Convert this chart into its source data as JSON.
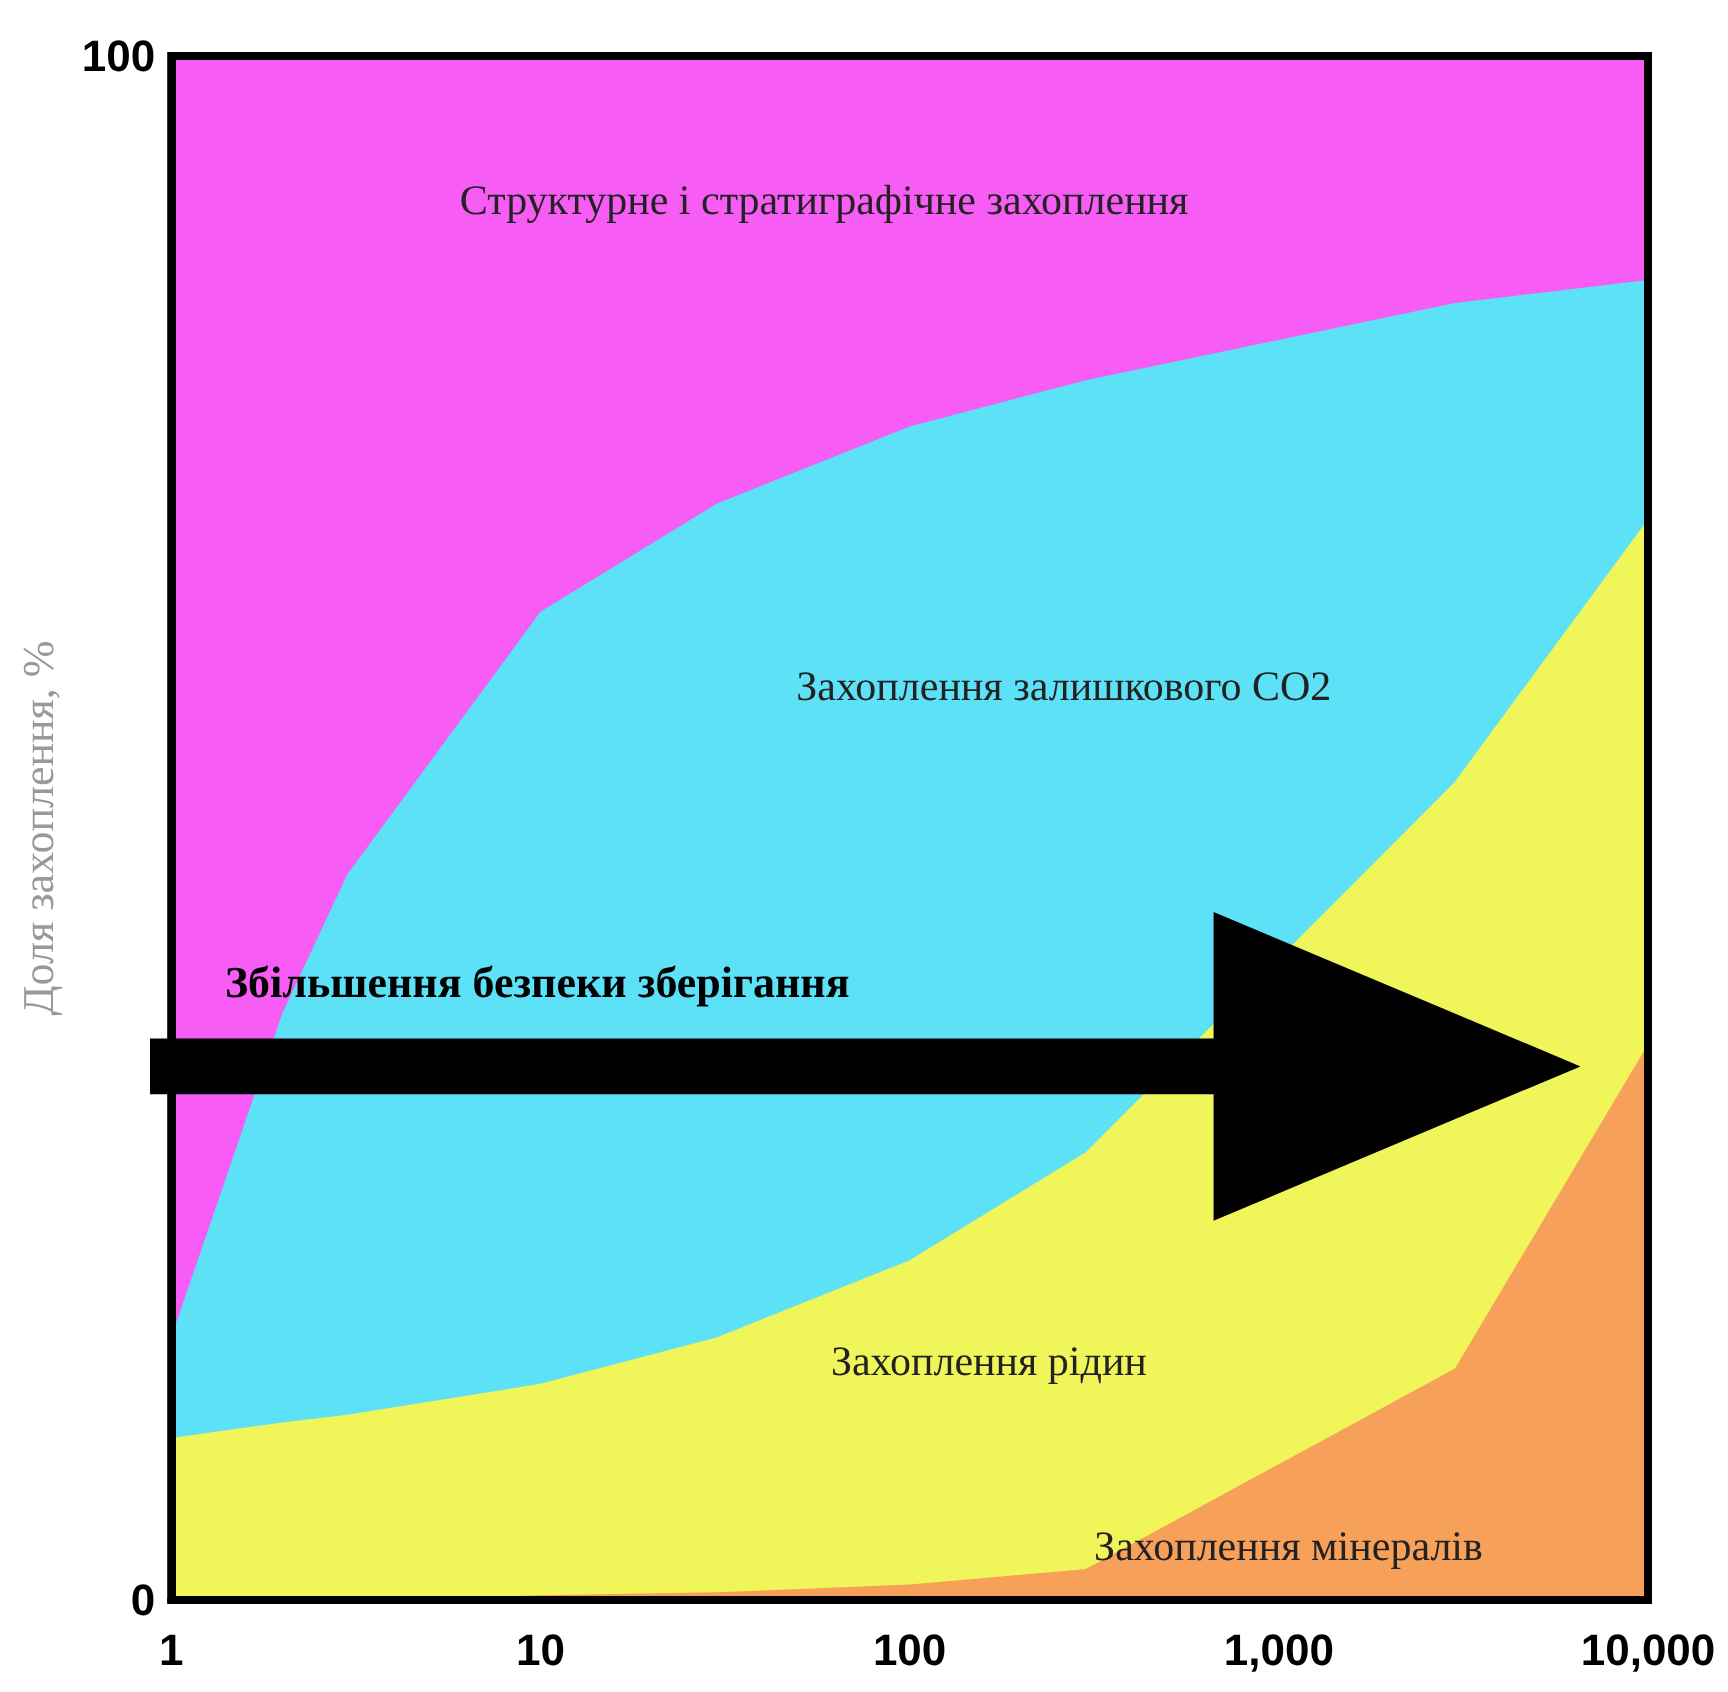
{
  "chart_data": {
    "type": "area",
    "stacked": true,
    "log": "x",
    "ylabel": "Доля захоплення, %",
    "x": [
      1,
      2,
      3,
      10,
      30,
      100,
      300,
      3000,
      10000
    ],
    "xlim": [
      1,
      10000
    ],
    "xticks": [
      1,
      10,
      100,
      {
        "value": 1000,
        "label": "1,000"
      },
      {
        "value": 10000,
        "label": "10,000"
      }
    ],
    "ylim": [
      0,
      100
    ],
    "yticks": [
      0,
      100
    ],
    "series": [
      {
        "name": "Захоплення мінералів",
        "color": "#f7a05a",
        "values": [
          0,
          0,
          0,
          0.3,
          0.5,
          1,
          2,
          15,
          36
        ]
      },
      {
        "name": "Захоплення рідин",
        "color": "#f0f55a",
        "values": [
          10.5,
          11.5,
          12,
          13.7,
          16.5,
          21,
          27,
          38,
          34
        ]
      },
      {
        "name": "Захоплення залишкового СО2",
        "color": "#5ce1f7",
        "values": [
          6.5,
          26.5,
          35,
          50,
          54,
          54,
          50,
          31,
          15.5
        ]
      },
      {
        "name": "Структурне і стратиграфічне захоплення",
        "color": "#f75cf5",
        "values": [
          83,
          62,
          53,
          36,
          29,
          24,
          21,
          16,
          14.5
        ]
      }
    ],
    "annotations": [
      "Збільшення безпеки зберігання"
    ],
    "grid": false,
    "legend": false
  }
}
